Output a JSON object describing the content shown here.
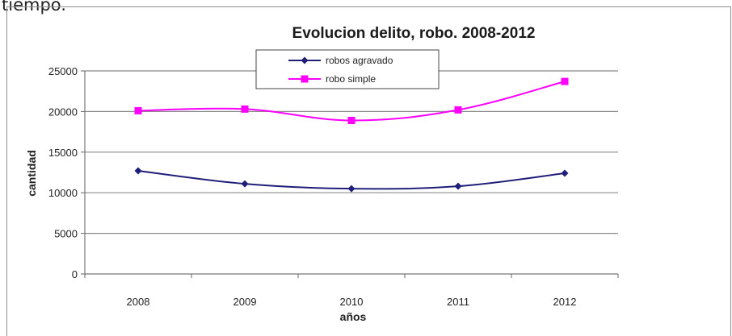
{
  "caption_fragment": "tiempo.",
  "chart_data": {
    "type": "line",
    "title": "Evolucion delito, robo. 2008-2012",
    "xlabel": "años",
    "ylabel": "cantidad",
    "categories": [
      "2008",
      "2009",
      "2010",
      "2011",
      "2012"
    ],
    "ylim": [
      0,
      25000
    ],
    "yticks": [
      0,
      5000,
      10000,
      15000,
      20000,
      25000
    ],
    "grid": true,
    "legend_position": "top-center",
    "series": [
      {
        "name": "robos agravado",
        "values": [
          12700,
          11100,
          10500,
          10800,
          12400
        ],
        "color": "#1f1f7a",
        "marker": "diamond"
      },
      {
        "name": "robo simple",
        "values": [
          20100,
          20300,
          18900,
          20200,
          23700
        ],
        "color": "#ff00ff",
        "marker": "square"
      }
    ]
  }
}
